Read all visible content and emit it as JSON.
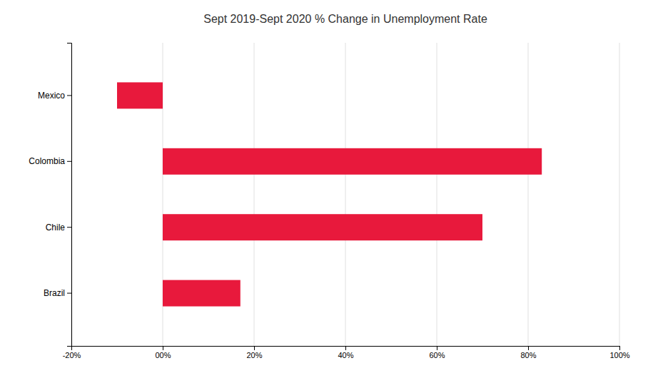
{
  "chart_data": {
    "type": "bar",
    "orientation": "horizontal",
    "title": "Sept 2019-Sept 2020 % Change in Unemployment Rate",
    "categories": [
      "Mexico",
      "Colombia",
      "Chile",
      "Brazil"
    ],
    "values": [
      -10,
      83,
      70,
      17
    ],
    "color": "#E8193C",
    "xlim": [
      -20,
      100
    ],
    "xticks": [
      {
        "value": -20,
        "label": "-20%"
      },
      {
        "value": 0,
        "label": "00%"
      },
      {
        "value": 20,
        "label": "20%"
      },
      {
        "value": 40,
        "label": "40%"
      },
      {
        "value": 60,
        "label": "60%"
      },
      {
        "value": 80,
        "label": "80%"
      },
      {
        "value": 100,
        "label": "100%"
      }
    ],
    "grid": true
  }
}
